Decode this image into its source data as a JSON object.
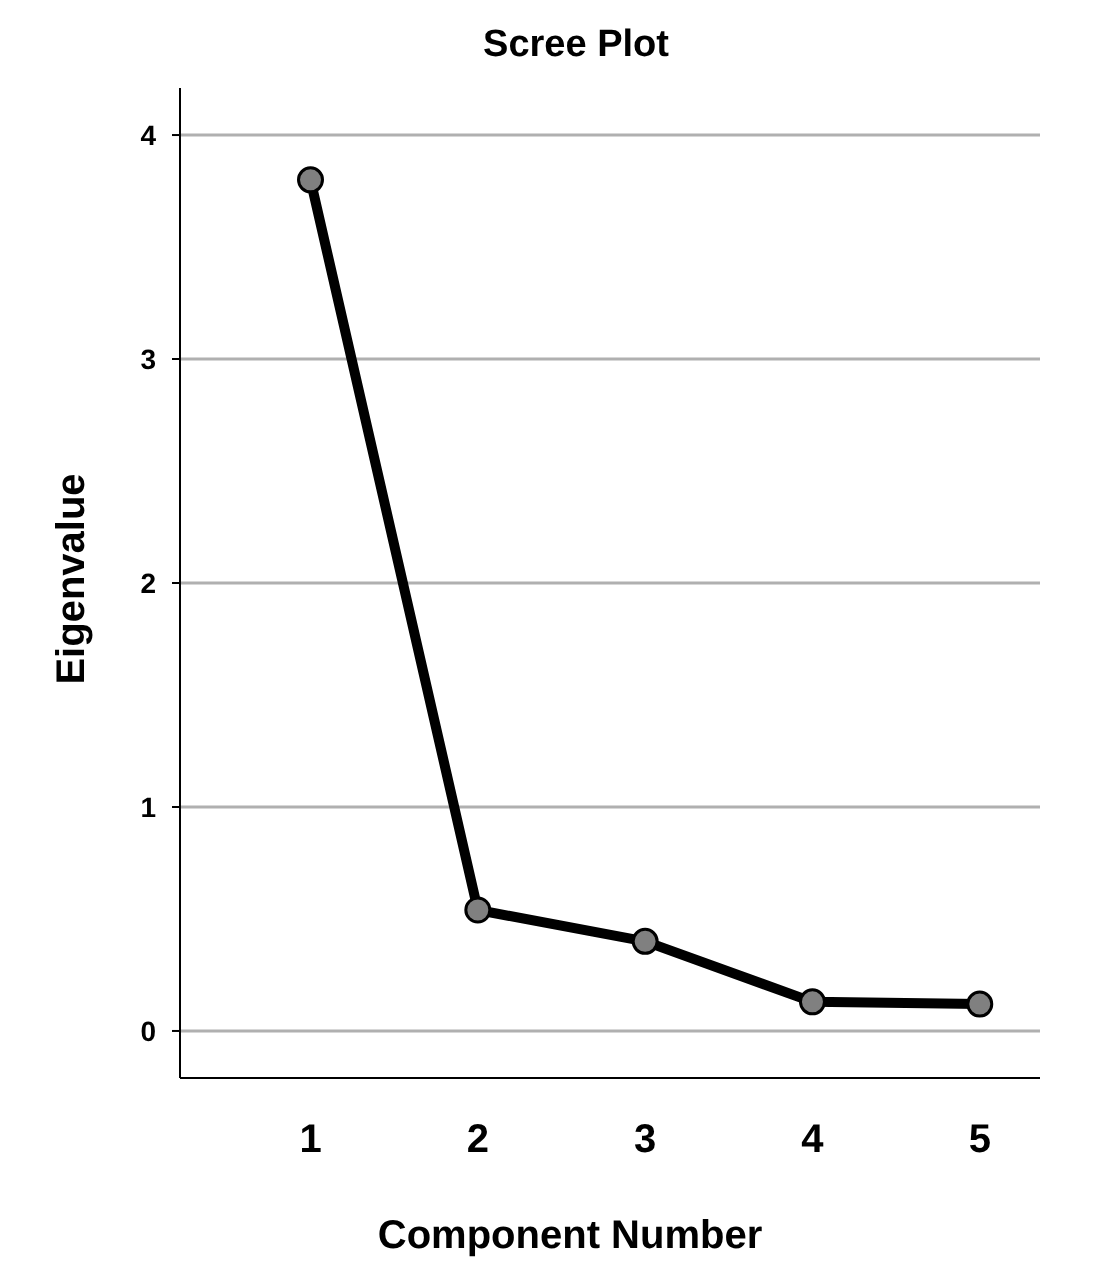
{
  "chart_data": {
    "type": "line",
    "title": "Scree Plot",
    "xlabel": "Component Number",
    "ylabel": "Eigenvalue",
    "x": [
      1,
      2,
      3,
      4,
      5
    ],
    "series": [
      {
        "color": "#000000",
        "values": [
          3.8,
          0.54,
          0.4,
          0.13,
          0.12
        ]
      }
    ],
    "xlim": [
      0.22,
      5.36
    ],
    "xticks": [
      1,
      2,
      3,
      4,
      5
    ],
    "ylim": [
      -0.21,
      4.21
    ],
    "yticks": [
      0,
      1,
      2,
      3,
      4
    ],
    "grid": "y",
    "marker": "circle",
    "line_style": "solid"
  }
}
